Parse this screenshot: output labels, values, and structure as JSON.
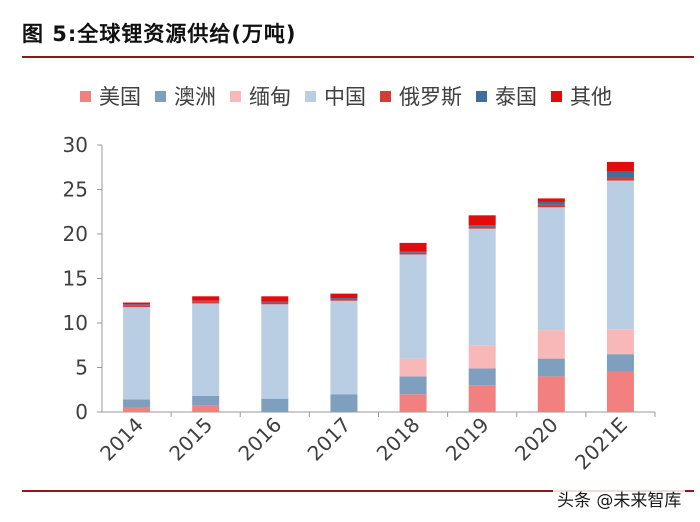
{
  "figure": {
    "title": "图 5:全球锂资源供给(万吨)",
    "watermark": "头条 @未来智库"
  },
  "chart_data": {
    "type": "bar",
    "stacked": true,
    "title": "图 5:全球锂资源供给(万吨)",
    "xlabel": "",
    "ylabel": "",
    "ylim": [
      0,
      30
    ],
    "yticks": [
      "0",
      "5",
      "10",
      "15",
      "20",
      "25",
      "30"
    ],
    "categories": [
      "2014",
      "2015",
      "2016",
      "2017",
      "2018",
      "2019",
      "2020",
      "2021E"
    ],
    "legend_position": "top",
    "series": [
      {
        "name": "美国",
        "color": "#f28080",
        "values": [
          0.5,
          0.7,
          0.0,
          0.0,
          2.0,
          3.0,
          4.0,
          4.5
        ]
      },
      {
        "name": "澳洲",
        "color": "#7f9fbf",
        "values": [
          0.9,
          1.1,
          1.5,
          2.0,
          2.0,
          1.9,
          2.0,
          2.0
        ]
      },
      {
        "name": "缅甸",
        "color": "#f8b8b8",
        "values": [
          0.0,
          0.0,
          0.0,
          0.0,
          2.0,
          2.6,
          3.2,
          2.8
        ]
      },
      {
        "name": "中国",
        "color": "#b9cde3",
        "values": [
          10.4,
          10.4,
          10.6,
          10.5,
          11.7,
          13.1,
          13.8,
          16.7
        ]
      },
      {
        "name": "俄罗斯",
        "color": "#d83a3a",
        "values": [
          0.2,
          0.2,
          0.2,
          0.2,
          0.2,
          0.2,
          0.3,
          0.3
        ]
      },
      {
        "name": "泰国",
        "color": "#3e6e9a",
        "values": [
          0.1,
          0.1,
          0.1,
          0.1,
          0.1,
          0.2,
          0.3,
          0.7
        ]
      },
      {
        "name": "其他",
        "color": "#e30c0c",
        "values": [
          0.2,
          0.5,
          0.6,
          0.5,
          1.0,
          1.1,
          0.4,
          1.1
        ]
      }
    ]
  }
}
